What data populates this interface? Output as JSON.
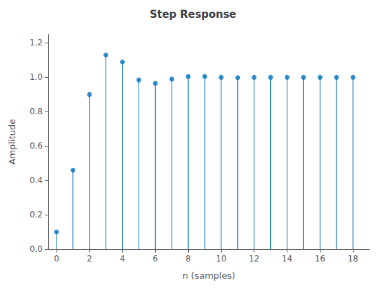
{
  "chart_data": {
    "type": "stem",
    "title": "Step Response",
    "xlabel": "n (samples)",
    "ylabel": "Amplitude",
    "x": [
      0,
      1,
      2,
      3,
      4,
      5,
      6,
      7,
      8,
      9,
      10,
      11,
      12,
      13,
      14,
      15,
      16,
      17,
      18
    ],
    "values": [
      0.1,
      0.46,
      0.9,
      1.13,
      1.09,
      0.985,
      0.965,
      0.99,
      1.005,
      1.005,
      1.0,
      0.998,
      1.0,
      1.0,
      1.0,
      1.0,
      1.0,
      1.0,
      1.0
    ],
    "color": "#0072BD",
    "xlim": [
      -0.5,
      19.0
    ],
    "ylim": [
      0,
      1.25
    ],
    "xticks": [
      0,
      2,
      4,
      6,
      8,
      10,
      12,
      14,
      16,
      18
    ],
    "yticks": [
      {
        "value": 0,
        "label": "0.0"
      },
      0.2,
      0.4,
      0.6,
      0.8,
      {
        "value": 1.0,
        "label": "1.0"
      },
      1.2
    ],
    "grid": false
  }
}
